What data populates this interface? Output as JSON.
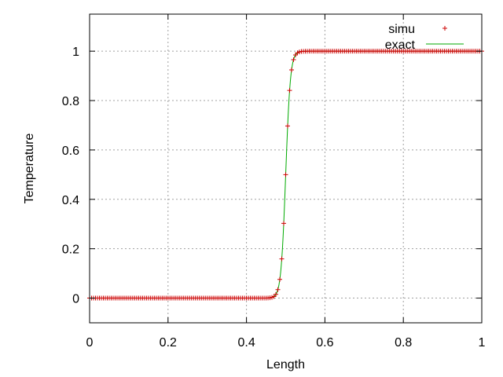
{
  "chart_data": {
    "type": "line",
    "title": "",
    "xlabel": "Length",
    "ylabel": "Temperature",
    "xlim": [
      0,
      1
    ],
    "ylim": [
      -0.1,
      1.15
    ],
    "x_ticks": [
      0,
      0.2,
      0.4,
      0.6,
      0.8,
      1
    ],
    "x_tick_labels": [
      "0",
      "0.2",
      "0.4",
      "0.6",
      "0.8",
      "1"
    ],
    "y_ticks": [
      0,
      0.2,
      0.4,
      0.6,
      0.8,
      1
    ],
    "y_tick_labels": [
      "0",
      "0.2",
      "0.4",
      "0.6",
      "0.8",
      "1"
    ],
    "grid": true,
    "legend_position": "top-right",
    "series": [
      {
        "name": "simu",
        "style": "points",
        "marker": "+",
        "color": "#cc0000",
        "x_range": [
          0,
          1
        ],
        "n_points": 201,
        "profile": {
          "kind": "tanh-front",
          "center": 0.5,
          "width": 0.012,
          "low": 0,
          "high": 1
        }
      },
      {
        "name": "exact",
        "style": "line",
        "color": "#00aa00",
        "x_range": [
          0,
          1
        ],
        "profile": {
          "kind": "tanh-front",
          "center": 0.5,
          "width": 0.012,
          "low": 0,
          "high": 1
        }
      }
    ]
  }
}
